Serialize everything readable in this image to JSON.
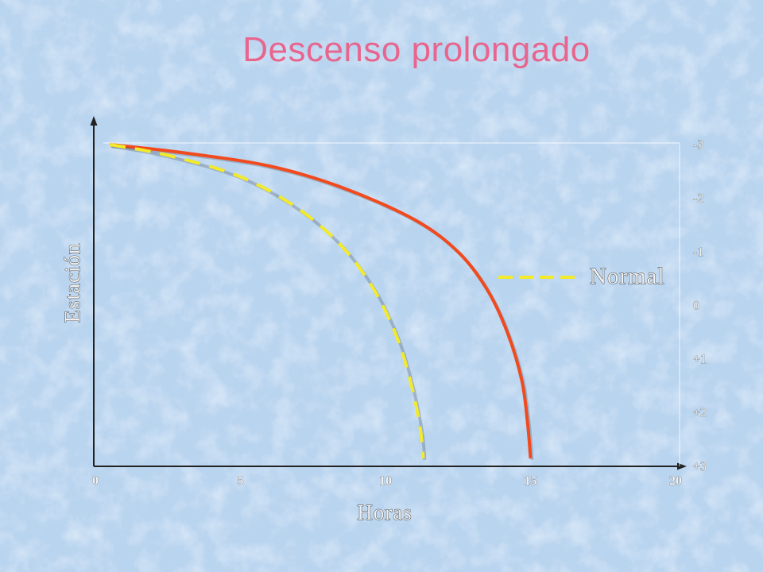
{
  "title": "Descenso prolongado",
  "chart_data": {
    "type": "line",
    "title": "Descenso prolongado",
    "xlabel": "Horas",
    "ylabel": "Estación",
    "x_ticks": [
      "0",
      "5",
      "10",
      "15",
      "20"
    ],
    "y_ticks": [
      "-3",
      "-2",
      "-1",
      "0",
      "+1",
      "+2",
      "+3"
    ],
    "xlim": [
      0,
      20
    ],
    "ylim_top_to_bottom": [
      -3,
      3
    ],
    "legend": {
      "position": "right-middle",
      "entries": [
        "Normal"
      ]
    },
    "grid": false,
    "series": [
      {
        "name": "",
        "color": "#f04a1e",
        "style": "solid",
        "points": [
          [
            0.5,
            -3.0
          ],
          [
            3.0,
            -2.85
          ],
          [
            6.0,
            -2.6
          ],
          [
            8.5,
            -2.2
          ],
          [
            11.0,
            -1.6
          ],
          [
            12.5,
            -1.0
          ],
          [
            13.5,
            -0.3
          ],
          [
            14.2,
            0.5
          ],
          [
            14.7,
            1.4
          ],
          [
            14.9,
            2.2
          ],
          [
            15.0,
            2.85
          ]
        ]
      },
      {
        "name": "Normal",
        "color": "#f2ea2a",
        "style": "dashed",
        "points": [
          [
            0.5,
            -3.0
          ],
          [
            2.5,
            -2.8
          ],
          [
            5.0,
            -2.4
          ],
          [
            7.0,
            -1.8
          ],
          [
            8.5,
            -1.1
          ],
          [
            9.6,
            -0.3
          ],
          [
            10.4,
            0.6
          ],
          [
            10.9,
            1.5
          ],
          [
            11.2,
            2.3
          ],
          [
            11.3,
            2.85
          ]
        ]
      }
    ]
  },
  "colors": {
    "background": "#bcd6f0",
    "title": "#e8658e",
    "axis": "#222222"
  }
}
